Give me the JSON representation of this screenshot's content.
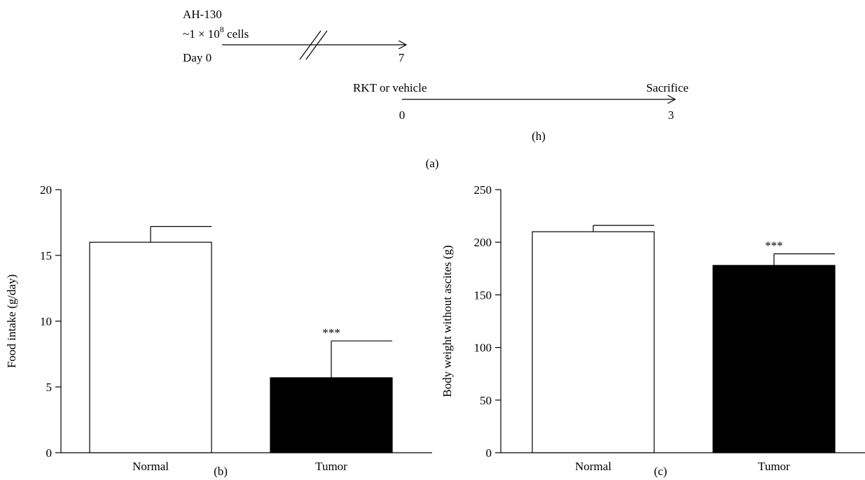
{
  "panel_a": {
    "timeline1": {
      "title": "AH-130",
      "dose_prefix": "~1 × 10",
      "dose_exp": "8",
      "dose_suffix": " cells",
      "start_label": "Day 0",
      "end_label": "7"
    },
    "timeline2": {
      "start_text": "RKT or vehicle",
      "end_text": "Sacrifice",
      "start_label": "0",
      "end_label": "3"
    },
    "sub_label": "(h)",
    "panel_label": "(a)"
  },
  "chart_data": [
    {
      "type": "bar",
      "panel_label": "(b)",
      "categories": [
        "Normal",
        "Tumor"
      ],
      "values": [
        16.0,
        5.7
      ],
      "errors": [
        1.2,
        2.8
      ],
      "colors": [
        "#ffffff",
        "#000000"
      ],
      "annotations": [
        "",
        "***"
      ],
      "ylabel": "Food intake (g/day)",
      "ylim": [
        0,
        20
      ],
      "yticks": [
        0,
        5,
        10,
        15,
        20
      ],
      "ytick_labels": [
        "0",
        "5",
        "10",
        "15",
        "20"
      ]
    },
    {
      "type": "bar",
      "panel_label": "(c)",
      "categories": [
        "Normal",
        "Tumor"
      ],
      "values": [
        210,
        178
      ],
      "errors": [
        6,
        11
      ],
      "colors": [
        "#ffffff",
        "#000000"
      ],
      "annotations": [
        "",
        "***"
      ],
      "ylabel": "Body weight without ascites (g)",
      "ylim": [
        0,
        250
      ],
      "yticks": [
        0,
        50,
        100,
        150,
        200,
        250
      ],
      "ytick_labels": [
        "0",
        "50",
        "100",
        "150",
        "200",
        "250"
      ]
    }
  ]
}
